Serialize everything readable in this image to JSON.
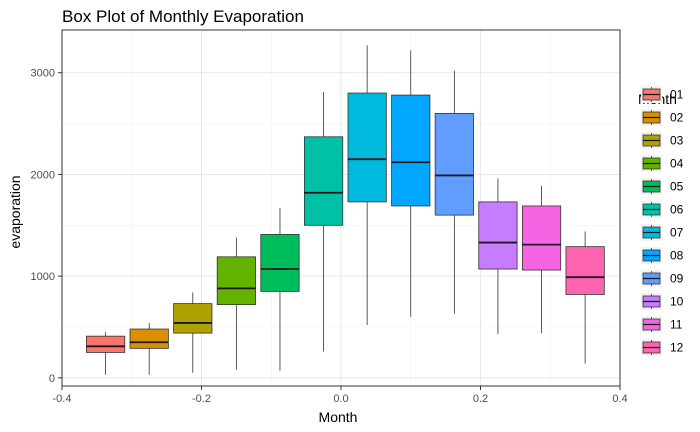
{
  "chart_data": {
    "type": "box",
    "title": "Box Plot of Monthly Evaporation",
    "xlabel": "Month",
    "ylabel": "evaporation",
    "xlim": [
      -0.4,
      0.4
    ],
    "ylim": [
      -80,
      3420
    ],
    "x_ticks": [
      -0.4,
      -0.2,
      0.0,
      0.2,
      0.4
    ],
    "x_tick_labels": [
      "-0.4",
      "-0.2",
      "0.0",
      "0.2",
      "0.4"
    ],
    "y_ticks": [
      0,
      1000,
      2000,
      3000
    ],
    "y_tick_labels": [
      "0",
      "1000",
      "2000",
      "3000"
    ],
    "grid": true,
    "legend": {
      "title": "Month",
      "position": "right"
    },
    "series": [
      {
        "name": "01",
        "color": "#F8766D",
        "x": -0.3375,
        "whisker_low": 30,
        "q1": 250,
        "median": 310,
        "q3": 410,
        "whisker_high": 450
      },
      {
        "name": "02",
        "color": "#DB8E00",
        "x": -0.275,
        "whisker_low": 30,
        "q1": 290,
        "median": 350,
        "q3": 480,
        "whisker_high": 540
      },
      {
        "name": "03",
        "color": "#AEA200",
        "x": -0.2125,
        "whisker_low": 50,
        "q1": 440,
        "median": 540,
        "q3": 730,
        "whisker_high": 840
      },
      {
        "name": "04",
        "color": "#64B200",
        "x": -0.15,
        "whisker_low": 80,
        "q1": 720,
        "median": 880,
        "q3": 1190,
        "whisker_high": 1380
      },
      {
        "name": "05",
        "color": "#00BD5C",
        "x": -0.0875,
        "whisker_low": 70,
        "q1": 850,
        "median": 1070,
        "q3": 1410,
        "whisker_high": 1670
      },
      {
        "name": "06",
        "color": "#00C1A7",
        "x": -0.025,
        "whisker_low": 260,
        "q1": 1500,
        "median": 1820,
        "q3": 2370,
        "whisker_high": 2810
      },
      {
        "name": "07",
        "color": "#00BADE",
        "x": 0.0375,
        "whisker_low": 520,
        "q1": 1730,
        "median": 2150,
        "q3": 2800,
        "whisker_high": 3270
      },
      {
        "name": "08",
        "color": "#00A6FF",
        "x": 0.1,
        "whisker_low": 600,
        "q1": 1690,
        "median": 2120,
        "q3": 2780,
        "whisker_high": 3220
      },
      {
        "name": "09",
        "color": "#619CFF",
        "x": 0.1625,
        "whisker_low": 630,
        "q1": 1600,
        "median": 1990,
        "q3": 2600,
        "whisker_high": 3020
      },
      {
        "name": "10",
        "color": "#C77CFF",
        "x": 0.225,
        "whisker_low": 430,
        "q1": 1070,
        "median": 1330,
        "q3": 1730,
        "whisker_high": 1960
      },
      {
        "name": "11",
        "color": "#F564E3",
        "x": 0.2875,
        "whisker_low": 440,
        "q1": 1060,
        "median": 1310,
        "q3": 1690,
        "whisker_high": 1890
      },
      {
        "name": "12",
        "color": "#FF64B0",
        "x": 0.35,
        "whisker_low": 140,
        "q1": 820,
        "median": 990,
        "q3": 1290,
        "whisker_high": 1440
      }
    ]
  }
}
